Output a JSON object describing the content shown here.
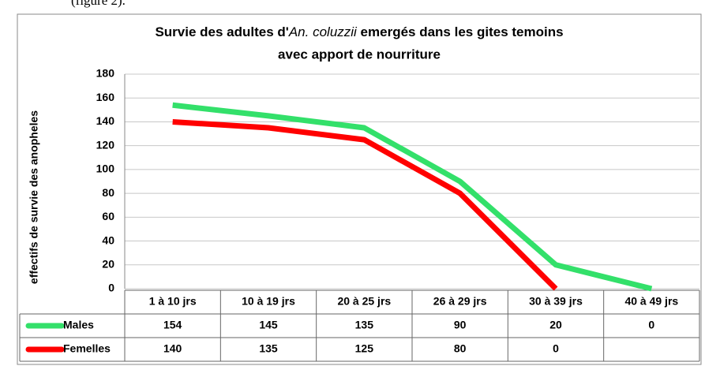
{
  "page_text": "(figure 2).",
  "chart_data": {
    "type": "line",
    "title": [
      "Survie des  adultes d'",
      "An. coluzzii",
      " emergés dans les gites temoins",
      "avec apport de  nourriture"
    ],
    "y_label": "effectifs de survie des anopheles",
    "categories": [
      "1 à 10 jrs",
      "10 à 19 jrs",
      "20 à 25 jrs",
      "26 à 29 jrs",
      "30 à 39 jrs",
      "40 à 49 jrs"
    ],
    "series": [
      {
        "name": "Males",
        "color": "#33e06a",
        "values": [
          154,
          145,
          135,
          90,
          20,
          0
        ]
      },
      {
        "name": "Femelles",
        "color": "#ff0000",
        "values": [
          140,
          135,
          125,
          80,
          0,
          null
        ]
      }
    ],
    "ylim": [
      0,
      180
    ],
    "yticks": [
      0,
      20,
      40,
      60,
      80,
      100,
      120,
      140,
      160,
      180
    ],
    "grid": true
  }
}
